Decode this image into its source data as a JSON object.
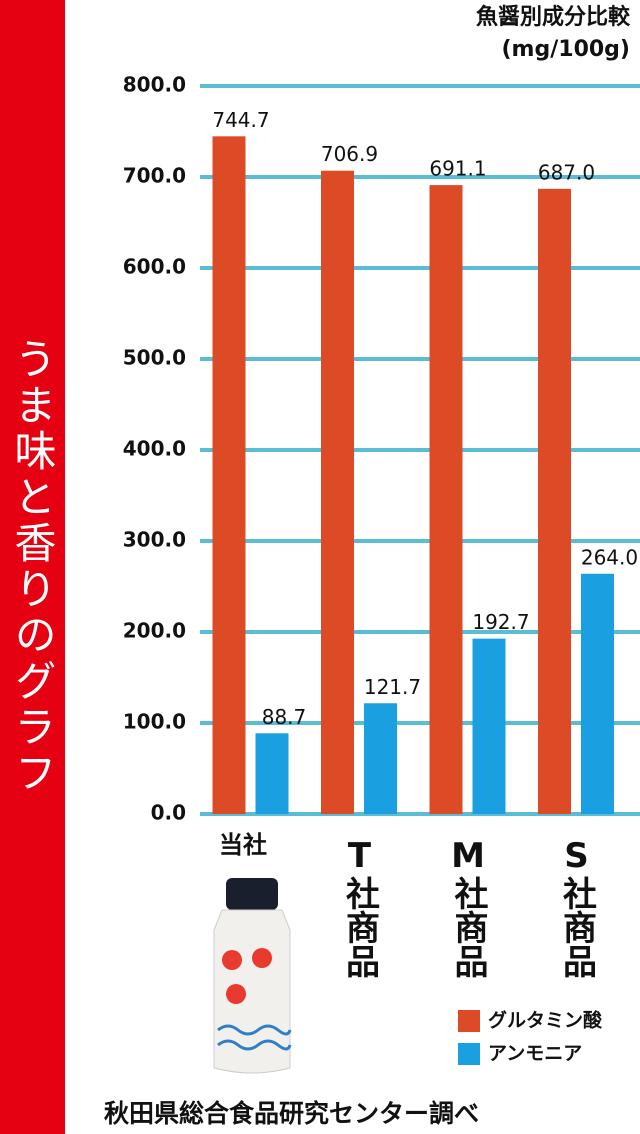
{
  "side_title": "うま味と香りのグラフ",
  "source": "秋田県総合食品研究センター調べ",
  "chart_data": {
    "type": "bar",
    "title": "魚醤別成分比較",
    "subtitle": "(mg/100g)",
    "categories": [
      "当社",
      "T社商品",
      "M社商品",
      "S社商品"
    ],
    "series": [
      {
        "name": "グルタミン酸",
        "color": "#dd4b26",
        "values": [
          744.7,
          706.9,
          691.1,
          687.0
        ],
        "value_labels": [
          "744.7",
          "706.9",
          "691.1",
          "687.0"
        ]
      },
      {
        "name": "アンモニア",
        "color": "#1aa0e0",
        "values": [
          88.7,
          121.7,
          192.7,
          264.0
        ],
        "value_labels": [
          "88.7",
          "121.7",
          "192.7",
          "264.0"
        ]
      }
    ],
    "ylim": [
      0,
      800
    ],
    "yticks": [
      {
        "value": 0,
        "label": "0.0"
      },
      {
        "value": 100,
        "label": "100.0"
      },
      {
        "value": 200,
        "label": "200.0"
      },
      {
        "value": 300,
        "label": "300.0"
      },
      {
        "value": 400,
        "label": "400.0"
      },
      {
        "value": 500,
        "label": "500.0"
      },
      {
        "value": 600,
        "label": "600.0"
      },
      {
        "value": 700,
        "label": "700.0"
      },
      {
        "value": 800,
        "label": "800.0"
      }
    ],
    "grid": true,
    "grid_color": "#5bbcd6",
    "legend": "lower right"
  }
}
